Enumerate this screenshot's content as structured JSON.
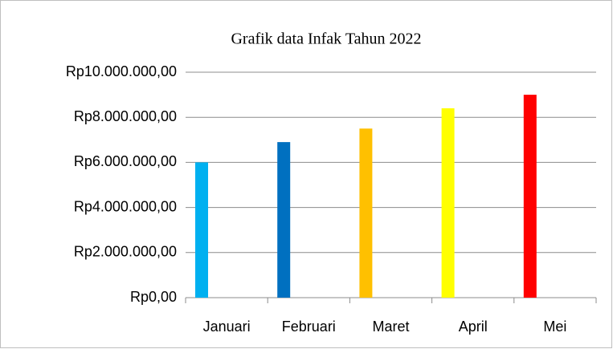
{
  "chart_data": {
    "type": "bar",
    "title": "Grafik data Infak Tahun 2022",
    "categories": [
      "Januari",
      "Februari",
      "Maret",
      "April",
      "Mei"
    ],
    "values": [
      6000000,
      6900000,
      7500000,
      8400000,
      9000000
    ],
    "colors": [
      "#00b0f0",
      "#0070c0",
      "#ffc000",
      "#ffff00",
      "#ff0000"
    ],
    "ylim": [
      0,
      10000000
    ],
    "yticks": [
      {
        "value": 0,
        "label": "Rp0,00"
      },
      {
        "value": 2000000,
        "label": "Rp2.000.000,00"
      },
      {
        "value": 4000000,
        "label": "Rp4.000.000,00"
      },
      {
        "value": 6000000,
        "label": "Rp6.000.000,00"
      },
      {
        "value": 8000000,
        "label": "Rp8.000.000,00"
      },
      {
        "value": 10000000,
        "label": "Rp10.000.000,00"
      }
    ],
    "grid": true
  }
}
